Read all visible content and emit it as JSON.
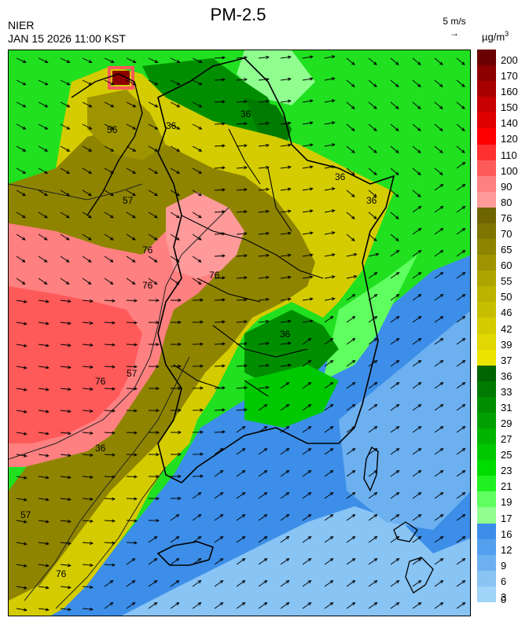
{
  "header": {
    "title": "PM-2.5",
    "org": "NIER",
    "timestamp": "JAN 15 2026 11:00 KST",
    "wind_scale_label": "5 m/s",
    "unit_prefix": "µg/m",
    "unit_exp": "3"
  },
  "legend": {
    "levels": [
      "200",
      "170",
      "160",
      "150",
      "140",
      "120",
      "110",
      "100",
      "90",
      "80",
      "76",
      "70",
      "65",
      "60",
      "55",
      "50",
      "46",
      "42",
      "39",
      "37",
      "36",
      "33",
      "31",
      "29",
      "27",
      "25",
      "23",
      "21",
      "19",
      "17",
      "16",
      "12",
      "9",
      "6",
      "3",
      "0"
    ],
    "colors": [
      "#6b0000",
      "#8c0000",
      "#a80000",
      "#c80000",
      "#e00000",
      "#ff0000",
      "#ff3030",
      "#ff5a5a",
      "#ff8080",
      "#ff9a9a",
      "#6e6400",
      "#7e7400",
      "#8e8400",
      "#9e9400",
      "#aea400",
      "#bcb200",
      "#c8be00",
      "#d4cc00",
      "#e0d800",
      "#ece400",
      "#006400",
      "#007a00",
      "#008e00",
      "#00a000",
      "#00b400",
      "#00c800",
      "#00dc00",
      "#20f020",
      "#60ff60",
      "#90ff90",
      "#3c8ee8",
      "#52a0ee",
      "#6cb0f0",
      "#88c4f4",
      "#a0d4f8"
    ]
  },
  "map": {
    "contour_labels": [
      "56",
      "36",
      "57",
      "76",
      "36",
      "36",
      "76",
      "36",
      "57",
      "76",
      "36",
      "57",
      "76",
      "76",
      "36"
    ]
  }
}
